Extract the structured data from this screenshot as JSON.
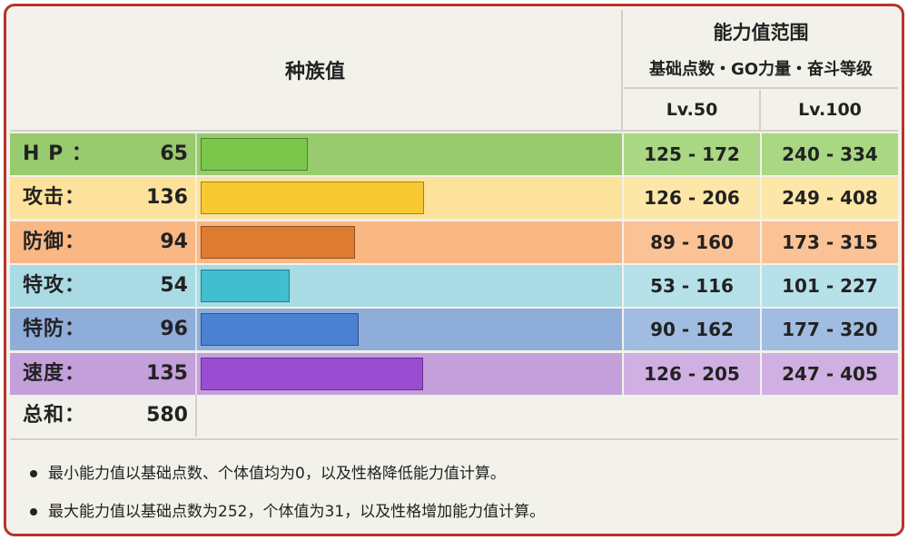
{
  "header": {
    "base_stats": "种族值",
    "range_title": "能力值范围",
    "range_subtitle": "基础点数・GO力量・奋斗等级",
    "lv50": "Lv.50",
    "lv100": "Lv.100"
  },
  "chart_data": {
    "type": "bar",
    "categories": [
      "H P ：",
      "攻击：",
      "防御：",
      "特攻：",
      "特防：",
      "速度："
    ],
    "values": [
      65,
      136,
      94,
      54,
      96,
      135
    ],
    "xlim": [
      0,
      255
    ],
    "ranges_lv50": [
      "125 - 172",
      "126 - 206",
      "89 - 160",
      "53 - 116",
      "90 - 162",
      "126 - 205"
    ],
    "ranges_lv100": [
      "240 - 334",
      "249 - 408",
      "173 - 315",
      "101 - 227",
      "177 - 320",
      "247 - 405"
    ],
    "total_label": "总和：",
    "total_value": 580
  },
  "colors": {
    "row_bg": [
      "#97cb6e",
      "#fde29b",
      "#f9b784",
      "#a9dbe4",
      "#8fadd9",
      "#c4a0db"
    ],
    "bar_fill": [
      "#7ac74c",
      "#f8c933",
      "#dd7b30",
      "#42bfcf",
      "#4a82d1",
      "#9a4dd1"
    ],
    "range_bg": [
      "#a9d783",
      "#fde7a8",
      "#fbc295",
      "#b6e1e9",
      "#a0bce1",
      "#d0b0e2"
    ]
  },
  "notes": [
    "最小能力值以基础点数、个体值均为0，以及性格降低能力值计算。",
    "最大能力值以基础点数为252，个体值为31，以及性格增加能力值计算。"
  ]
}
